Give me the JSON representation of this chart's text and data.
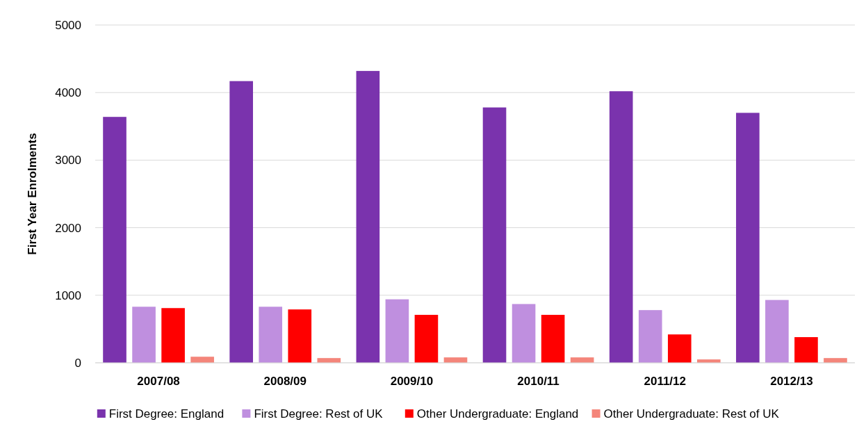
{
  "chart_data": {
    "type": "bar",
    "ylabel": "First Year Enrolments",
    "categories": [
      "2007/08",
      "2008/09",
      "2009/10",
      "2010/11",
      "2011/12",
      "2012/13"
    ],
    "series": [
      {
        "name": "First Degree: England",
        "color": "#7a33ad",
        "values": [
          3640,
          4170,
          4320,
          3780,
          4020,
          3700
        ]
      },
      {
        "name": "First Degree: Rest of UK",
        "color": "#bf8fdf",
        "values": [
          830,
          830,
          940,
          870,
          780,
          930
        ]
      },
      {
        "name": "Other Undergraduate: England",
        "color": "#ff0000",
        "values": [
          810,
          790,
          710,
          710,
          420,
          380
        ]
      },
      {
        "name": "Other Undergraduate: Rest of UK",
        "color": "#f4857a",
        "values": [
          90,
          70,
          80,
          80,
          50,
          70
        ]
      }
    ],
    "ylim": [
      0,
      5000
    ],
    "yticks": [
      0,
      1000,
      2000,
      3000,
      4000,
      5000
    ],
    "grid": "y",
    "legend": "bottom"
  }
}
